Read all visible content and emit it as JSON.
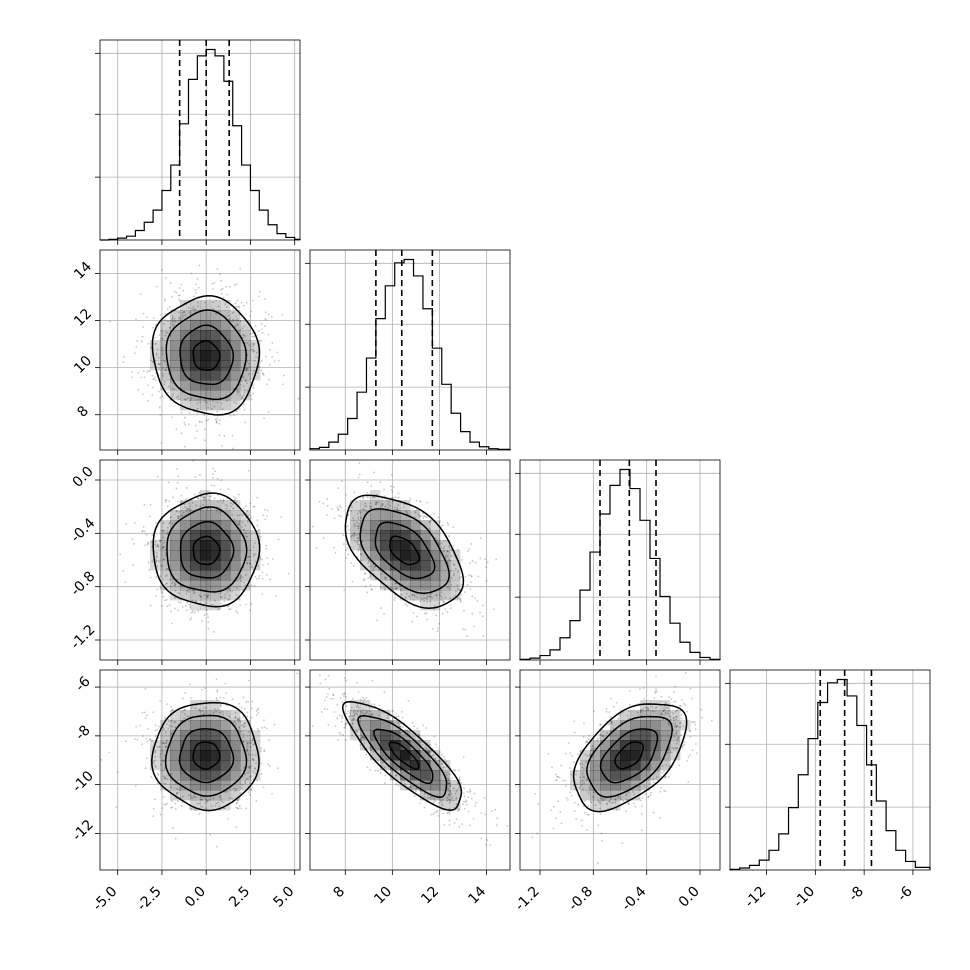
{
  "chart_data": {
    "type": "corner",
    "grid": true,
    "dimensions": [
      {
        "index": 0,
        "ticks": [
          "-5.0",
          "-2.5",
          "0.0",
          "2.5",
          "5.0"
        ],
        "tick_values": [
          -5.0,
          -2.5,
          0.0,
          2.5,
          5.0
        ],
        "range": [
          -6.0,
          5.3
        ],
        "quantiles": [
          -1.5,
          0.0,
          1.3
        ],
        "histogram": {
          "edges": [
            -6.0,
            -5.5,
            -5.0,
            -4.5,
            -4.0,
            -3.5,
            -3.0,
            -2.5,
            -2.0,
            -1.5,
            -1.0,
            -0.5,
            0.0,
            0.5,
            1.0,
            1.5,
            2.0,
            2.5,
            3.0,
            3.5,
            4.0,
            4.5,
            5.0,
            5.3
          ],
          "counts": [
            0.0,
            1,
            3,
            6,
            15,
            28,
            47,
            78,
            118,
            183,
            253,
            290,
            300,
            290,
            250,
            180,
            118,
            78,
            47,
            24,
            10,
            4,
            1
          ]
        }
      },
      {
        "index": 1,
        "ticks": [
          "8",
          "10",
          "12",
          "14"
        ],
        "tick_values": [
          8,
          10,
          12,
          14
        ],
        "range": [
          6.5,
          15.0
        ],
        "quantiles": [
          9.3,
          10.4,
          11.7
        ],
        "histogram": {
          "edges": [
            6.5,
            6.9,
            7.3,
            7.7,
            8.1,
            8.5,
            8.9,
            9.3,
            9.7,
            10.1,
            10.5,
            10.9,
            11.3,
            11.7,
            12.1,
            12.5,
            12.9,
            13.3,
            13.7,
            14.1,
            14.5,
            15.0
          ],
          "counts": [
            2,
            4,
            12,
            24,
            48,
            88,
            140,
            200,
            250,
            285,
            290,
            265,
            215,
            155,
            100,
            56,
            28,
            12,
            5,
            2,
            1
          ]
        }
      },
      {
        "index": 2,
        "ticks": [
          "-1.2",
          "-0.8",
          "-0.4",
          "0.0"
        ],
        "tick_values": [
          -1.2,
          -0.8,
          -0.4,
          0.0
        ],
        "range": [
          -1.35,
          0.15
        ],
        "quantiles": [
          -0.75,
          -0.53,
          -0.33
        ],
        "histogram": {
          "edges": [
            -1.35,
            -1.275,
            -1.2,
            -1.125,
            -1.05,
            -0.975,
            -0.9,
            -0.825,
            -0.75,
            -0.675,
            -0.6,
            -0.525,
            -0.45,
            -0.375,
            -0.3,
            -0.225,
            -0.15,
            -0.075,
            0.0,
            0.075,
            0.15
          ],
          "counts": [
            1,
            3,
            7,
            16,
            35,
            62,
            110,
            170,
            230,
            275,
            300,
            270,
            220,
            160,
            100,
            58,
            28,
            12,
            4,
            1
          ]
        }
      },
      {
        "index": 3,
        "ticks": [
          "-12",
          "-10",
          "-8",
          "-6"
        ],
        "tick_values": [
          -12,
          -10,
          -8,
          -6
        ],
        "range": [
          -13.5,
          -5.3
        ],
        "quantiles": [
          -9.8,
          -8.8,
          -7.7
        ],
        "histogram": {
          "edges": [
            -13.5,
            -13.1,
            -12.7,
            -12.3,
            -11.9,
            -11.5,
            -11.1,
            -10.7,
            -10.3,
            -9.9,
            -9.5,
            -9.1,
            -8.7,
            -8.3,
            -7.9,
            -7.5,
            -7.1,
            -6.7,
            -6.3,
            -5.9,
            -5.3
          ],
          "counts": [
            1,
            3,
            7,
            15,
            30,
            55,
            95,
            145,
            200,
            255,
            285,
            290,
            265,
            220,
            160,
            105,
            60,
            30,
            13,
            4
          ]
        }
      }
    ],
    "pairs": [
      {
        "x": 0,
        "y": 1,
        "mean": [
          0.0,
          10.5
        ],
        "sd": [
          1.5,
          1.25
        ],
        "corr": -0.05
      },
      {
        "x": 0,
        "y": 2,
        "mean": [
          0.0,
          -0.53
        ],
        "sd": [
          1.5,
          0.21
        ],
        "corr": 0.0
      },
      {
        "x": 1,
        "y": 2,
        "mean": [
          10.5,
          -0.53
        ],
        "sd": [
          1.25,
          0.21
        ],
        "corr": -0.5
      },
      {
        "x": 0,
        "y": 3,
        "mean": [
          0.0,
          -8.8
        ],
        "sd": [
          1.5,
          1.1
        ],
        "corr": 0.0
      },
      {
        "x": 1,
        "y": 3,
        "mean": [
          10.5,
          -8.8
        ],
        "sd": [
          1.25,
          1.1
        ],
        "corr": -0.82
      },
      {
        "x": 2,
        "y": 3,
        "mean": [
          -0.53,
          -8.8
        ],
        "sd": [
          0.21,
          1.1
        ],
        "corr": 0.5
      }
    ],
    "contour_levels_sigma": [
      0.5,
      1.0,
      1.5,
      2.0
    ],
    "colors": {
      "line": "#000000",
      "grid": "#b0b0b0",
      "points": "#000000",
      "density": "#000000"
    }
  }
}
